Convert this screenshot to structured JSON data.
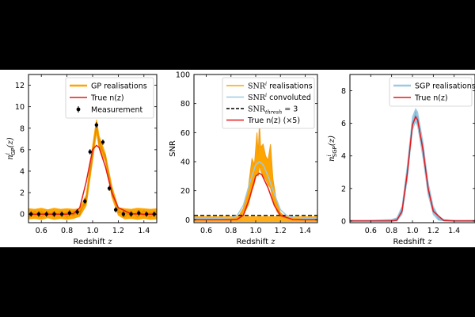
{
  "chart_data": [
    {
      "type": "line",
      "xlabel": "Redshift",
      "xlabel_var": "z",
      "ylabel": "n",
      "ylabel_sup": "i",
      "ylabel_sub": "GP",
      "ylabel_arg": "(z)",
      "xlim": [
        0.5,
        1.5
      ],
      "ylim": [
        -0.8,
        13
      ],
      "xticks": [
        0.6,
        0.8,
        1.0,
        1.2,
        1.4
      ],
      "xtick_labels": [
        "0.6",
        "0.8",
        "1.0",
        "1.2",
        "1.4"
      ],
      "yticks": [
        0,
        2,
        4,
        6,
        8,
        10,
        12
      ],
      "ytick_labels": [
        "0",
        "2",
        "4",
        "6",
        "8",
        "10",
        "12"
      ],
      "legend_position": "top-right",
      "legend": [
        {
          "label": "GP realisations",
          "color": "#FFA500",
          "style": "band"
        },
        {
          "label": "True n(z)",
          "color": "#E41A1C",
          "style": "line"
        },
        {
          "label": "Measurement",
          "color": "#000000",
          "style": "errorbar"
        }
      ],
      "series": [
        {
          "name": "True n(z)",
          "color": "#E41A1C",
          "x": [
            0.5,
            0.6,
            0.7,
            0.8,
            0.85,
            0.9,
            0.95,
            1.0,
            1.03,
            1.05,
            1.1,
            1.15,
            1.2,
            1.3,
            1.4,
            1.5
          ],
          "y": [
            0,
            0,
            0,
            0,
            0.05,
            0.6,
            3.0,
            6.0,
            6.4,
            6.2,
            4.4,
            2.0,
            0.6,
            0.03,
            0,
            0
          ]
        },
        {
          "name": "Measurement",
          "color": "#000000",
          "x": [
            0.52,
            0.58,
            0.64,
            0.7,
            0.76,
            0.82,
            0.88,
            0.94,
            0.98,
            1.03,
            1.08,
            1.13,
            1.18,
            1.24,
            1.3,
            1.36,
            1.42,
            1.48
          ],
          "y": [
            0.0,
            0.0,
            0.0,
            0.0,
            0.0,
            0.1,
            0.2,
            1.2,
            5.8,
            8.3,
            6.7,
            2.4,
            0.4,
            0.0,
            0.0,
            0.1,
            0.0,
            0.0
          ]
        }
      ],
      "band": {
        "name": "GP realisations",
        "color": "#FFA500",
        "x": [
          0.5,
          0.55,
          0.6,
          0.65,
          0.7,
          0.75,
          0.8,
          0.85,
          0.9,
          0.95,
          1.0,
          1.03,
          1.05,
          1.1,
          1.15,
          1.2,
          1.25,
          1.3,
          1.35,
          1.4,
          1.45,
          1.5
        ],
        "lower": [
          -0.45,
          -0.4,
          -0.5,
          -0.35,
          -0.5,
          -0.4,
          -0.5,
          -0.4,
          -0.2,
          0.8,
          5.0,
          7.6,
          6.2,
          4.9,
          1.6,
          -0.1,
          -0.45,
          -0.4,
          -0.5,
          -0.4,
          -0.5,
          -0.45
        ],
        "upper": [
          0.5,
          0.45,
          0.55,
          0.4,
          0.55,
          0.45,
          0.5,
          0.45,
          0.5,
          1.8,
          6.4,
          8.8,
          7.3,
          5.6,
          2.6,
          0.6,
          0.5,
          0.45,
          0.55,
          0.5,
          0.45,
          0.5
        ]
      }
    },
    {
      "type": "line",
      "xlabel": "Redshift",
      "xlabel_var": "z",
      "ylabel": "SNR",
      "xlim": [
        0.5,
        1.5
      ],
      "ylim": [
        -2,
        100
      ],
      "xticks": [
        0.6,
        0.8,
        1.0,
        1.2,
        1.4
      ],
      "xtick_labels": [
        "0.6",
        "0.8",
        "1.0",
        "1.2",
        "1.4"
      ],
      "yticks": [
        0,
        20,
        40,
        60,
        80,
        100
      ],
      "ytick_labels": [
        "0",
        "20",
        "40",
        "60",
        "80",
        "100"
      ],
      "legend_position": "top-right",
      "legend": [
        {
          "label": "SNR",
          "sup": "i",
          "suffix": " realisations",
          "color": "#FFA500",
          "style": "line"
        },
        {
          "label": "SNR",
          "sup": "i",
          "suffix": " convoluted",
          "color": "#9ECAE1",
          "style": "line"
        },
        {
          "label": "SNR",
          "sub": "thresh",
          "suffix": " = 3",
          "color": "#000000",
          "style": "dashed"
        },
        {
          "label": "True n(z) (×5)",
          "color": "#E41A1C",
          "style": "line"
        }
      ],
      "threshold": 3,
      "series": [
        {
          "name": "True n(z) (×5)",
          "color": "#E41A1C",
          "x": [
            0.5,
            0.6,
            0.7,
            0.8,
            0.85,
            0.9,
            0.95,
            1.0,
            1.03,
            1.05,
            1.1,
            1.15,
            1.2,
            1.3,
            1.4,
            1.5
          ],
          "y": [
            0,
            0,
            0,
            0,
            0.3,
            3,
            15,
            30,
            32,
            31,
            22,
            10,
            3,
            0.2,
            0,
            0
          ]
        },
        {
          "name": "SNR convoluted",
          "color": "#9ECAE1",
          "x": [
            0.5,
            0.6,
            0.7,
            0.8,
            0.85,
            0.9,
            0.95,
            1.0,
            1.03,
            1.06,
            1.1,
            1.15,
            1.2,
            1.25,
            1.3,
            1.4,
            1.5
          ],
          "y": [
            1,
            1,
            1,
            1.5,
            3,
            10,
            25,
            38,
            40,
            38,
            30,
            18,
            7,
            3,
            2,
            1,
            1
          ]
        }
      ],
      "realisation_peaks": {
        "x": [
          0.9,
          0.94,
          0.97,
          0.99,
          1.01,
          1.02,
          1.03,
          1.04,
          1.06,
          1.08,
          1.1,
          1.12,
          1.14,
          1.17,
          1.2
        ],
        "upper": [
          8,
          22,
          42,
          38,
          60,
          45,
          67,
          50,
          52,
          44,
          41,
          52,
          28,
          12,
          5
        ],
        "lower": [
          3,
          10,
          20,
          25,
          33,
          30,
          38,
          34,
          30,
          28,
          24,
          22,
          14,
          6,
          2
        ]
      }
    },
    {
      "type": "line",
      "xlabel": "Redshift",
      "xlabel_var": "z",
      "ylabel": "n",
      "ylabel_sup": "i",
      "ylabel_sub": "SGP",
      "ylabel_arg": "(z)",
      "xlim": [
        0.4,
        1.6
      ],
      "ylim": [
        -0.1,
        9
      ],
      "xticks": [
        0.6,
        0.8,
        1.0,
        1.2,
        1.4
      ],
      "xtick_labels": [
        "0.6",
        "0.8",
        "1.0",
        "1.2",
        "1.4"
      ],
      "yticks": [
        0,
        2,
        4,
        6,
        8
      ],
      "ytick_labels": [
        "0",
        "2",
        "4",
        "6",
        "8"
      ],
      "legend_position": "top-right",
      "legend": [
        {
          "label": "SGP realisations",
          "color": "#9ECAE1",
          "style": "band"
        },
        {
          "label": "True n(z)",
          "color": "#E41A1C",
          "style": "line"
        }
      ],
      "series": [
        {
          "name": "True n(z)",
          "color": "#E41A1C",
          "x": [
            0.4,
            0.6,
            0.8,
            0.85,
            0.9,
            0.95,
            1.0,
            1.03,
            1.05,
            1.1,
            1.15,
            1.2,
            1.3,
            1.4,
            1.6
          ],
          "y": [
            0,
            0,
            0,
            0.05,
            0.6,
            2.9,
            5.9,
            6.4,
            6.2,
            4.4,
            2.0,
            0.6,
            0.03,
            0,
            0
          ]
        }
      ],
      "band": {
        "name": "SGP realisations",
        "color": "#9ECAE1",
        "x": [
          0.4,
          0.6,
          0.8,
          0.85,
          0.9,
          0.95,
          1.0,
          1.03,
          1.05,
          1.1,
          1.15,
          1.2,
          1.25,
          1.3,
          1.4,
          1.6
        ],
        "lower": [
          0,
          0,
          0,
          0,
          0.4,
          2.5,
          5.6,
          6.1,
          5.8,
          3.9,
          1.6,
          0.4,
          0.05,
          0,
          0,
          0
        ],
        "upper": [
          0.05,
          0.05,
          0.1,
          0.2,
          0.9,
          3.4,
          6.4,
          6.9,
          6.7,
          4.9,
          2.4,
          0.9,
          0.3,
          0.1,
          0.05,
          0.05
        ]
      }
    }
  ]
}
